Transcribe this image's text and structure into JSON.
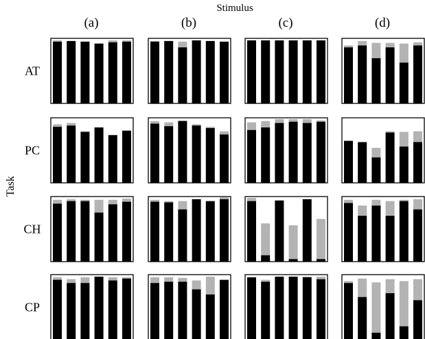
{
  "figure": {
    "column_axis_title": "Stimulus",
    "row_axis_title": "Task",
    "columns": [
      "(a)",
      "(b)",
      "(c)",
      "(d)"
    ],
    "rows": [
      "AT",
      "PC",
      "CH",
      "CP"
    ]
  },
  "colors": {
    "primary_bar": "#000000",
    "secondary_bar": "#b3b3b3",
    "panel_border": "#000000",
    "background": "#ffffff"
  },
  "chart_data": {
    "type": "bar",
    "stacked": true,
    "ylim": [
      0,
      1
    ],
    "grid": false,
    "legend": "none",
    "series": [
      {
        "key": "black"
      },
      {
        "key": "gray"
      }
    ],
    "panels": [
      {
        "row": "AT",
        "column": "(a)",
        "black": [
          0.97,
          0.98,
          0.97,
          0.94,
          0.96,
          0.97
        ],
        "gray": [
          0.02,
          0.0,
          0.0,
          0.0,
          0.03,
          0.02
        ]
      },
      {
        "row": "AT",
        "column": "(b)",
        "black": [
          0.97,
          0.98,
          0.88,
          0.99,
          0.98,
          0.97
        ],
        "gray": [
          0.01,
          0.0,
          0.09,
          0.0,
          0.0,
          0.0
        ]
      },
      {
        "row": "AT",
        "column": "(c)",
        "black": [
          0.99,
          0.99,
          0.99,
          0.99,
          0.99,
          0.99
        ],
        "gray": [
          0.0,
          0.0,
          0.0,
          0.0,
          0.0,
          0.0
        ]
      },
      {
        "row": "AT",
        "column": "(d)",
        "black": [
          0.88,
          0.91,
          0.71,
          0.88,
          0.64,
          0.91
        ],
        "gray": [
          0.03,
          0.07,
          0.24,
          0.07,
          0.3,
          0.05
        ]
      },
      {
        "row": "PC",
        "column": "(a)",
        "black": [
          0.88,
          0.9,
          0.8,
          0.87,
          0.75,
          0.82
        ],
        "gray": [
          0.04,
          0.04,
          0.01,
          0.0,
          0.0,
          0.0
        ]
      },
      {
        "row": "PC",
        "column": "(b)",
        "black": [
          0.93,
          0.89,
          0.97,
          0.9,
          0.86,
          0.76
        ],
        "gray": [
          0.04,
          0.06,
          0.01,
          0.02,
          0.02,
          0.05
        ]
      },
      {
        "row": "PC",
        "column": "(c)",
        "black": [
          0.83,
          0.87,
          0.94,
          0.96,
          0.94,
          0.96
        ],
        "gray": [
          0.12,
          0.1,
          0.06,
          0.04,
          0.06,
          0.02
        ]
      },
      {
        "row": "PC",
        "column": "(d)",
        "black": [
          0.66,
          0.64,
          0.4,
          0.79,
          0.57,
          0.64
        ],
        "gray": [
          0.0,
          0.0,
          0.15,
          0.02,
          0.23,
          0.17
        ]
      },
      {
        "row": "CH",
        "column": "(a)",
        "black": [
          0.91,
          0.95,
          0.95,
          0.77,
          0.9,
          0.94
        ],
        "gray": [
          0.06,
          0.03,
          0.02,
          0.2,
          0.07,
          0.05
        ]
      },
      {
        "row": "CH",
        "column": "(b)",
        "black": [
          0.94,
          0.93,
          0.82,
          0.98,
          0.95,
          0.98
        ],
        "gray": [
          0.03,
          0.02,
          0.13,
          0.0,
          0.0,
          0.03
        ]
      },
      {
        "row": "CH",
        "column": "(c)",
        "black": [
          0.95,
          0.1,
          0.96,
          0.04,
          0.98,
          0.04
        ],
        "gray": [
          0.05,
          0.5,
          0.0,
          0.53,
          0.0,
          0.63
        ]
      },
      {
        "row": "CH",
        "column": "(d)",
        "black": [
          0.92,
          0.72,
          0.88,
          0.72,
          0.95,
          0.82
        ],
        "gray": [
          0.05,
          0.16,
          0.09,
          0.23,
          0.02,
          0.16
        ]
      },
      {
        "row": "CP",
        "column": "(a)",
        "black": [
          0.94,
          0.89,
          0.89,
          0.99,
          0.93,
          0.96
        ],
        "gray": [
          0.04,
          0.06,
          0.09,
          0.0,
          0.05,
          0.02
        ]
      },
      {
        "row": "CP",
        "column": "(b)",
        "black": [
          0.89,
          0.91,
          0.91,
          0.79,
          0.71,
          0.94
        ],
        "gray": [
          0.09,
          0.07,
          0.06,
          0.14,
          0.28,
          0.0
        ]
      },
      {
        "row": "CP",
        "column": "(c)",
        "black": [
          0.98,
          0.91,
          0.99,
          0.99,
          0.98,
          0.95
        ],
        "gray": [
          0.0,
          0.03,
          0.0,
          0.0,
          0.01,
          0.04
        ]
      },
      {
        "row": "CP",
        "column": "(d)",
        "black": [
          0.89,
          0.67,
          0.11,
          0.73,
          0.21,
          0.62
        ],
        "gray": [
          0.03,
          0.29,
          0.79,
          0.22,
          0.71,
          0.33
        ]
      }
    ]
  }
}
